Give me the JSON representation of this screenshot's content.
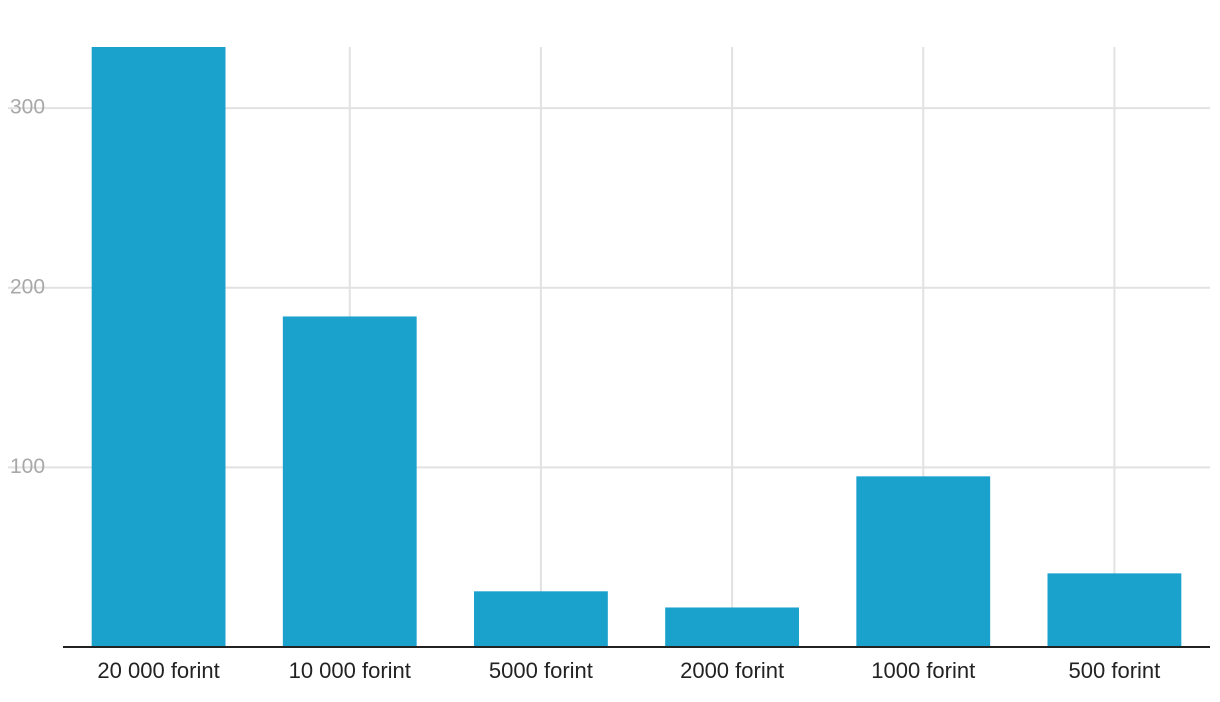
{
  "chart_data": {
    "type": "bar",
    "categories": [
      "20 000 forint",
      "10 000 forint",
      "5000 forint",
      "2000 forint",
      "1000 forint",
      "500 forint"
    ],
    "values": [
      334,
      184,
      31,
      22,
      95,
      41
    ],
    "color": "#1aa1cc",
    "ylim": [
      0,
      334
    ],
    "yticks": [
      100,
      200,
      300
    ],
    "grid": true
  }
}
